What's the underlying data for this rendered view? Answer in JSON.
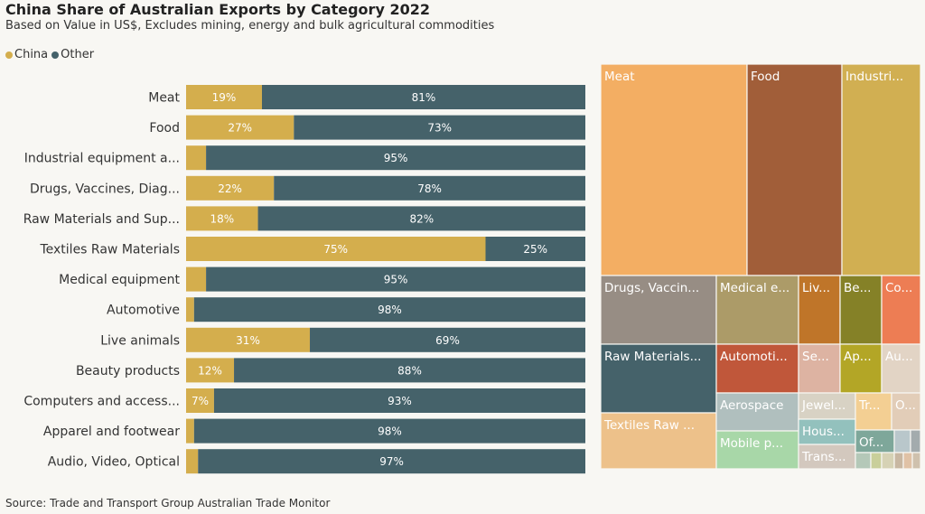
{
  "header": {
    "title": "China Share of Australian Exports by Category 2022",
    "subtitle": "Based on Value in US$, Excludes mining, energy and bulk agricultural commodities"
  },
  "legend": {
    "items": [
      {
        "label": "China",
        "color": "#d4ae4d"
      },
      {
        "label": "Other",
        "color": "#45626a"
      }
    ]
  },
  "source": "Source: Trade and Transport Group Australian Trade Monitor",
  "chart_data": [
    {
      "type": "bar",
      "orientation": "horizontal",
      "stacked": true,
      "percent_scale": true,
      "categories": [
        "Meat",
        "Food",
        "Industrial equipment a...",
        "Drugs, Vaccines, Diag...",
        "Raw Materials and Sup...",
        "Textiles Raw Materials",
        "Medical equipment",
        "Automotive",
        "Live animals",
        "Beauty products",
        "Computers and access...",
        "Apparel and footwear",
        "Audio, Video, Optical"
      ],
      "series": [
        {
          "name": "China",
          "color": "#d4ae4d",
          "values": [
            19,
            27,
            5,
            22,
            18,
            75,
            5,
            2,
            31,
            12,
            7,
            2,
            3
          ],
          "labels": [
            "19%",
            "27%",
            "",
            "22%",
            "18%",
            "75%",
            "",
            "",
            "31%",
            "12%",
            "7%",
            "",
            ""
          ]
        },
        {
          "name": "Other",
          "color": "#45626a",
          "values": [
            81,
            73,
            95,
            78,
            82,
            25,
            95,
            98,
            69,
            88,
            93,
            98,
            97
          ],
          "labels": [
            "81%",
            "73%",
            "95%",
            "78%",
            "82%",
            "25%",
            "95%",
            "98%",
            "69%",
            "88%",
            "93%",
            "98%",
            "97%"
          ]
        }
      ],
      "xlim": [
        0,
        100
      ],
      "grid": false,
      "legend_position": "top-left"
    },
    {
      "type": "treemap",
      "cells": [
        {
          "label": "Meat",
          "color": "#f3ae63",
          "text_color": "#ffffff"
        },
        {
          "label": "Food",
          "color": "#a15e39",
          "text_color": "#ffffff"
        },
        {
          "label": "Industri...",
          "color": "#d1af52",
          "text_color": "#ffffff"
        },
        {
          "label": "Drugs, Vaccin...",
          "color": "#978d84",
          "text_color": "#ffffff"
        },
        {
          "label": "Medical e...",
          "color": "#ac9b68",
          "text_color": "#ffffff"
        },
        {
          "label": "Liv...",
          "color": "#bf7529",
          "text_color": "#ffffff"
        },
        {
          "label": "Be...",
          "color": "#858127",
          "text_color": "#ffffff"
        },
        {
          "label": "Co...",
          "color": "#ed7d54",
          "text_color": "#ffffff"
        },
        {
          "label": "Raw Materials...",
          "color": "#45626a",
          "text_color": "#ffffff"
        },
        {
          "label": "Automoti...",
          "color": "#c0573a",
          "text_color": "#ffffff"
        },
        {
          "label": "Se...",
          "color": "#ddb3a2",
          "text_color": "#ffffff"
        },
        {
          "label": "Ap...",
          "color": "#b3a626",
          "text_color": "#ffffff"
        },
        {
          "label": "Au...",
          "color": "#e2d4c5",
          "text_color": "#ffffff"
        },
        {
          "label": "Textiles Raw ...",
          "color": "#edc18a",
          "text_color": "#ffffff"
        },
        {
          "label": "Aerospace",
          "color": "#b0bfbe",
          "text_color": "#ffffff"
        },
        {
          "label": "Mobile p...",
          "color": "#a8d7a8",
          "text_color": "#ffffff"
        },
        {
          "label": "Jewel...",
          "color": "#d8d2c4",
          "text_color": "#ffffff"
        },
        {
          "label": "Hous...",
          "color": "#93c1bd",
          "text_color": "#ffffff"
        },
        {
          "label": "Trans...",
          "color": "#d3c8be",
          "text_color": "#ffffff"
        },
        {
          "label": "Tr...",
          "color": "#f3cf93",
          "text_color": "#ffffff"
        },
        {
          "label": "O...",
          "color": "#e2cdb8",
          "text_color": "#ffffff"
        },
        {
          "label": "Of...",
          "color": "#7ea79a",
          "text_color": "#ffffff"
        },
        {
          "label": "",
          "color": "#b9c7cb",
          "text_color": "#ffffff"
        },
        {
          "label": "",
          "color": "#a3abad",
          "text_color": "#ffffff"
        },
        {
          "label": "",
          "color": "#b4c8b8",
          "text_color": "#ffffff"
        },
        {
          "label": "",
          "color": "#c9cf9a",
          "text_color": "#ffffff"
        },
        {
          "label": "",
          "color": "#d6d2b5",
          "text_color": "#ffffff"
        },
        {
          "label": "",
          "color": "#c8b7a2",
          "text_color": "#ffffff"
        },
        {
          "label": "",
          "color": "#e0c2a6",
          "text_color": "#ffffff"
        },
        {
          "label": "",
          "color": "#cfc1ad",
          "text_color": "#ffffff"
        }
      ]
    }
  ]
}
